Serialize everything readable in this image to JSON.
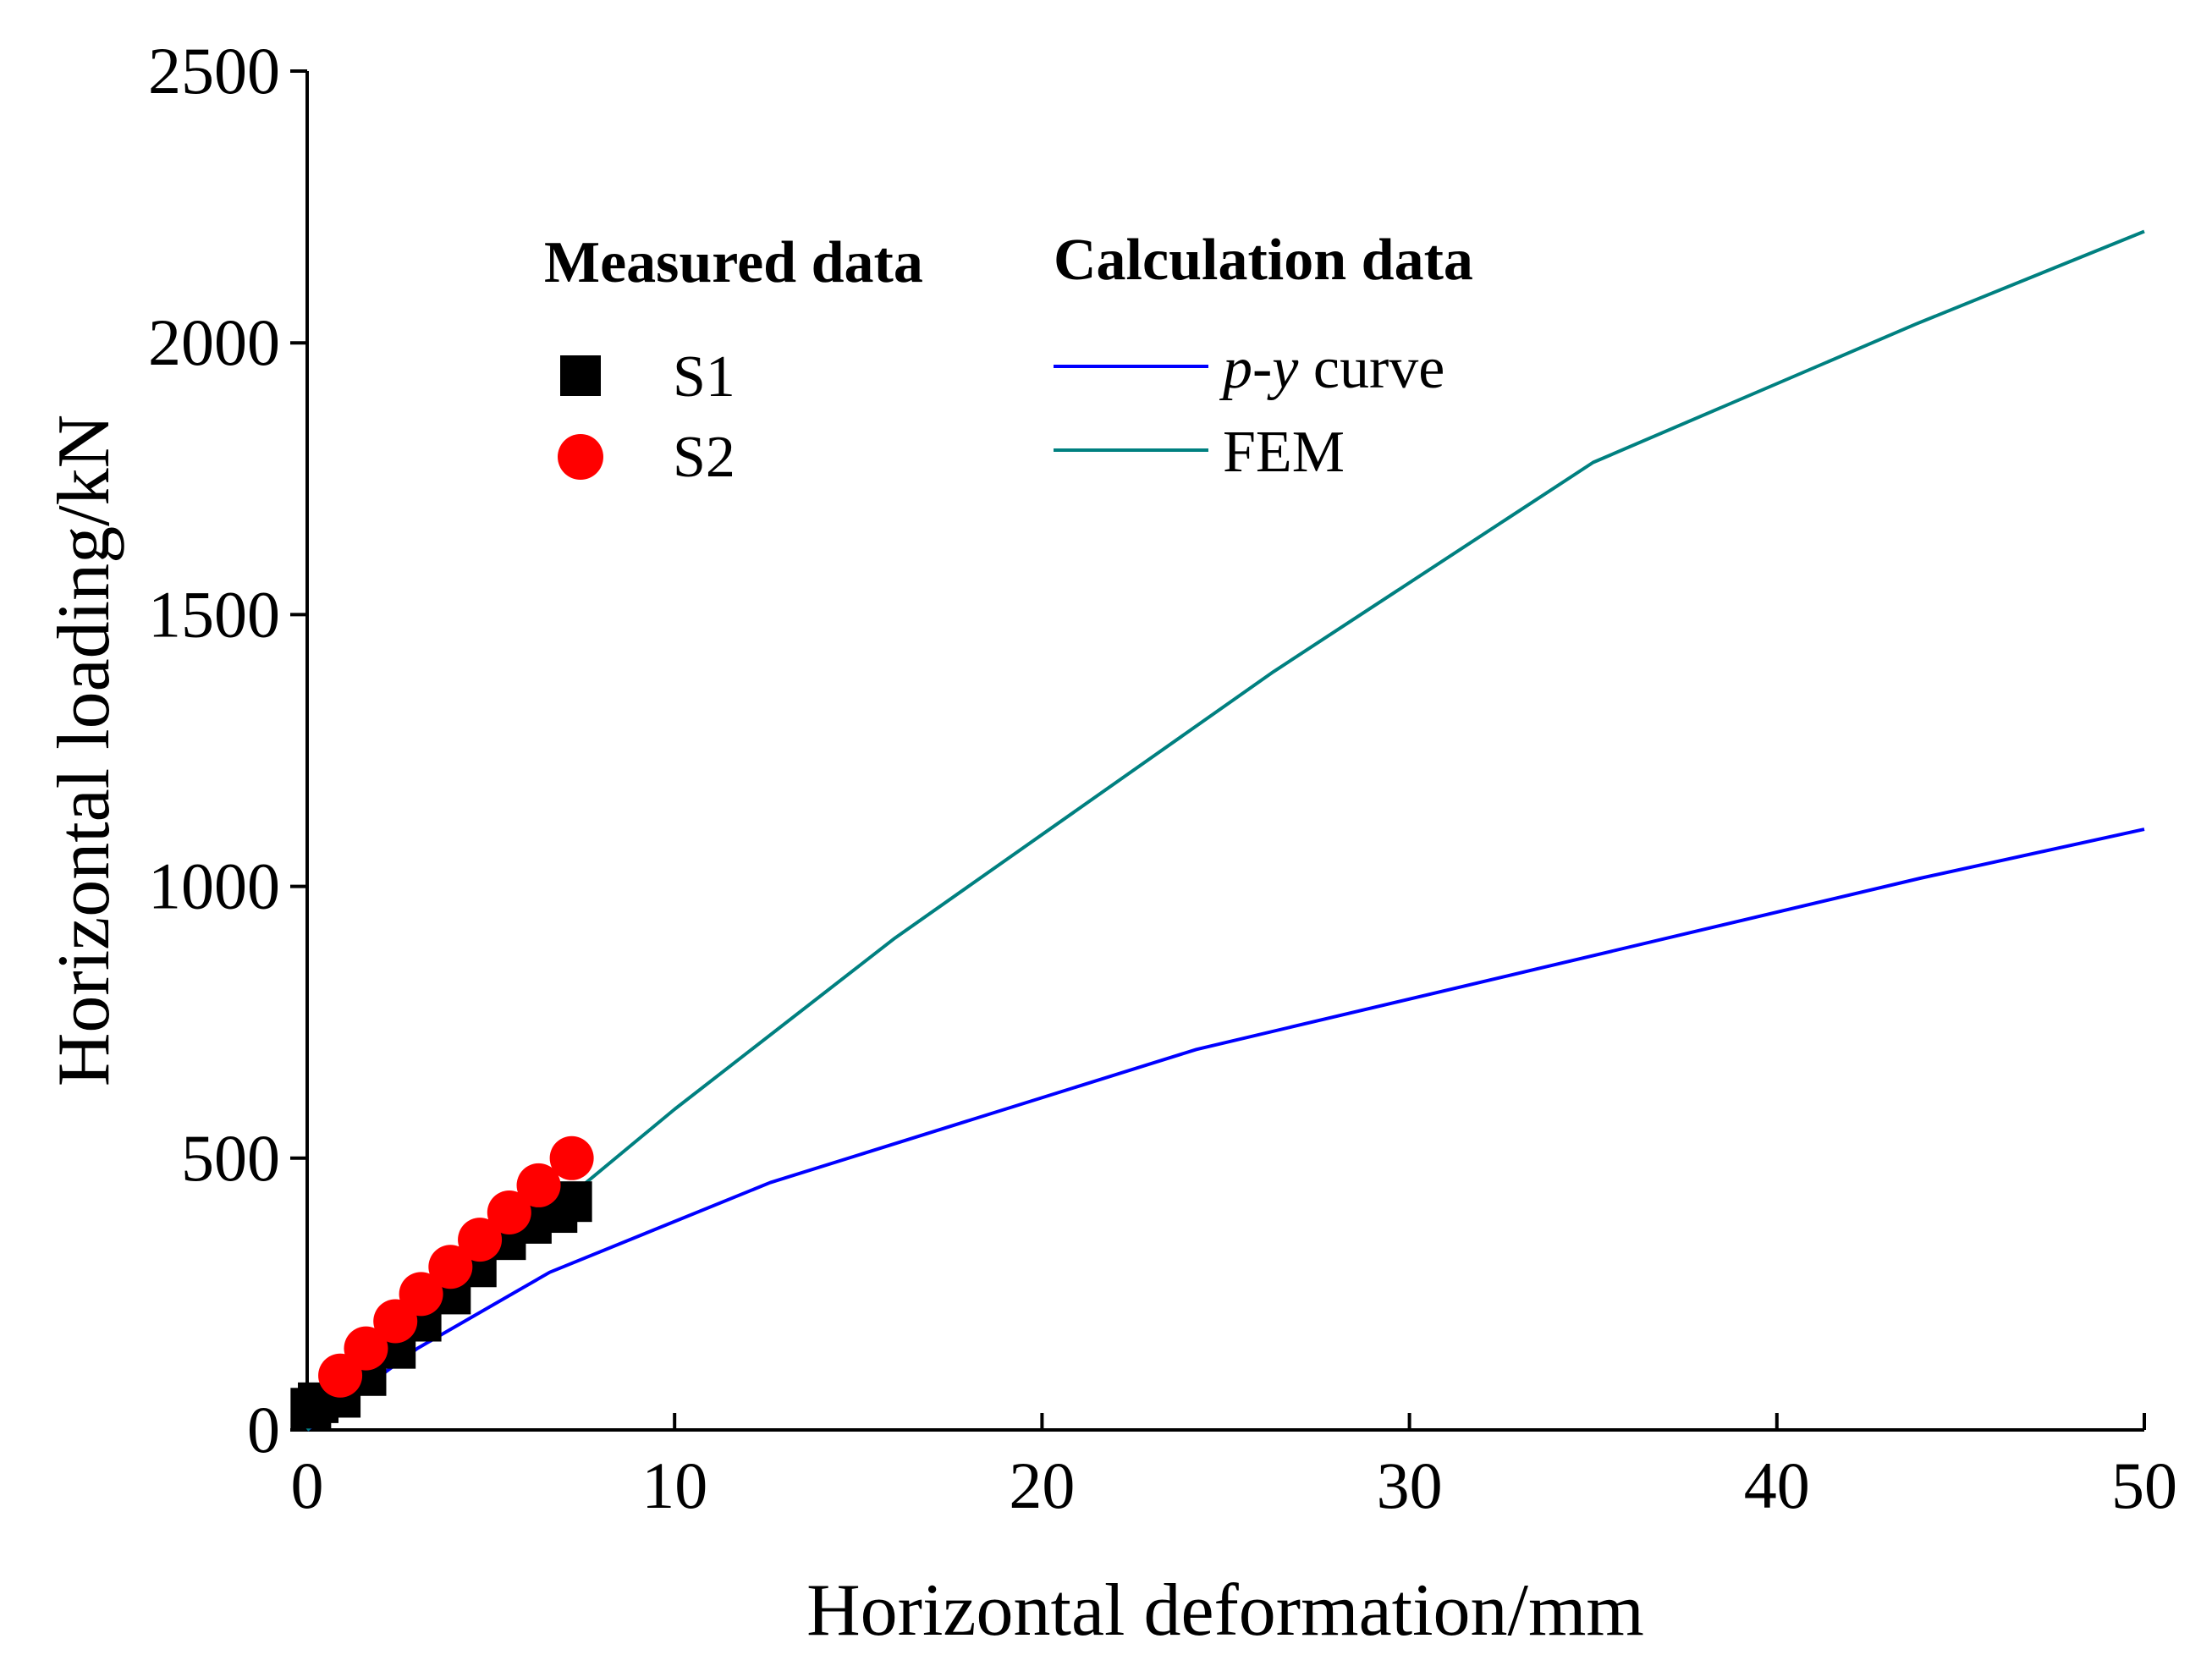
{
  "chart_data": {
    "type": "scatter+line",
    "xlabel": "Horizontal deformation/mm",
    "ylabel": "Horizontal loading/kN",
    "xlim": [
      0,
      50
    ],
    "ylim": [
      0,
      2500
    ],
    "xticks": [
      0,
      10,
      20,
      30,
      40,
      50
    ],
    "yticks": [
      0,
      500,
      1000,
      1500,
      2000,
      2500
    ],
    "grid": false,
    "legend": {
      "placement": "top-left",
      "measured_title": "Measured data",
      "calculation_title": "Calculation data",
      "py_label_italic": "p-y",
      "py_label_rest": " curve"
    },
    "scatter_series": [
      {
        "name": "S1",
        "marker": "square",
        "color": "#000000",
        "points": [
          [
            0.1,
            40
          ],
          [
            0.3,
            50
          ],
          [
            0.9,
            60
          ],
          [
            1.6,
            100
          ],
          [
            2.4,
            150
          ],
          [
            3.1,
            200
          ],
          [
            3.9,
            250
          ],
          [
            4.6,
            300
          ],
          [
            5.4,
            350
          ],
          [
            6.1,
            380
          ],
          [
            6.8,
            400
          ],
          [
            7.2,
            420
          ]
        ]
      },
      {
        "name": "S2",
        "marker": "circle",
        "color": "#ff0000",
        "points": [
          [
            0.9,
            100
          ],
          [
            1.6,
            150
          ],
          [
            2.4,
            200
          ],
          [
            3.1,
            250
          ],
          [
            3.9,
            300
          ],
          [
            4.7,
            350
          ],
          [
            5.5,
            400
          ],
          [
            6.3,
            450
          ],
          [
            7.2,
            500
          ]
        ]
      }
    ],
    "line_series": [
      {
        "name": "p-y curve",
        "color": "#0000ff",
        "points": [
          [
            0,
            0
          ],
          [
            3,
            150
          ],
          [
            6.6,
            290
          ],
          [
            12.6,
            455
          ],
          [
            24.2,
            700
          ],
          [
            43.9,
            1015
          ],
          [
            50,
            1105
          ]
        ]
      },
      {
        "name": "FEM",
        "color": "#008080",
        "points": [
          [
            0,
            0
          ],
          [
            5,
            310
          ],
          [
            10,
            590
          ],
          [
            16,
            905
          ],
          [
            26.3,
            1395
          ],
          [
            35,
            1780
          ],
          [
            43.8,
            2035
          ],
          [
            50,
            2205
          ]
        ]
      }
    ]
  }
}
